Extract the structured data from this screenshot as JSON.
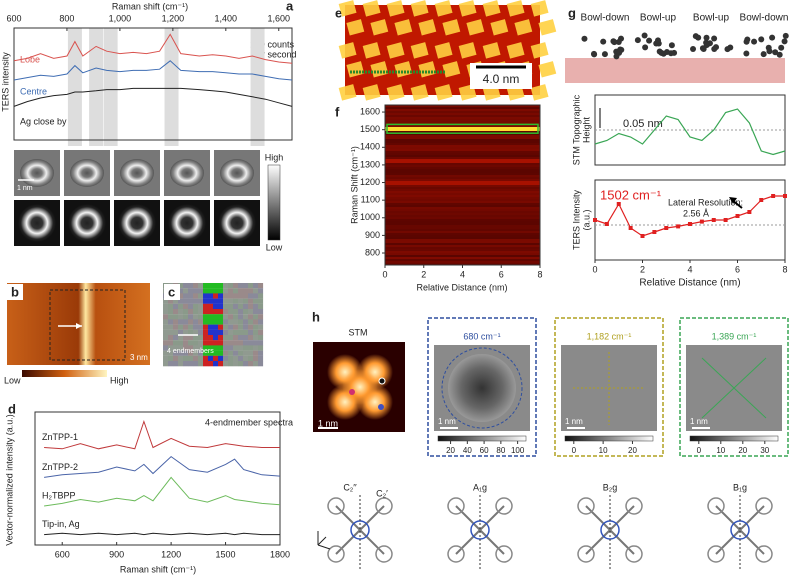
{
  "panels": {
    "a": {
      "label": "a",
      "x_label": "Raman shift (cm⁻¹)",
      "y_label": "TERS intensity",
      "scale_bar": [
        "100 counts",
        "per second"
      ],
      "xlim": [
        600,
        1650
      ],
      "xticks": [
        600,
        800,
        {
          "value": 1000,
          "label": "1,000"
        },
        {
          "value": 1200,
          "label": "1,200"
        },
        {
          "value": 1400,
          "label": "1,400"
        },
        {
          "value": 1600,
          "label": "1,600"
        }
      ],
      "ylim": [
        0,
        100
      ],
      "x": [
        600,
        650,
        700,
        750,
        800,
        830,
        860,
        910,
        950,
        1000,
        1050,
        1100,
        1150,
        1190,
        1230,
        1300,
        1350,
        1400,
        1450,
        1500,
        1550,
        1600,
        1650
      ],
      "series": [
        {
          "name": "Lobe",
          "color": "#d9534f",
          "values": [
            66,
            68,
            72,
            68,
            70,
            82,
            70,
            78,
            74,
            72,
            73,
            72,
            74,
            88,
            72,
            70,
            71,
            70,
            68,
            70,
            67,
            65,
            64
          ]
        },
        {
          "name": "Centre",
          "color": "#3f6db3",
          "values": [
            50,
            52,
            54,
            53,
            55,
            62,
            56,
            60,
            58,
            57,
            58,
            58,
            59,
            66,
            58,
            57,
            57,
            56,
            55,
            55,
            53,
            51,
            50
          ]
        },
        {
          "name": "Ag close by",
          "color": "#222222",
          "values": [
            28,
            32,
            35,
            37,
            38,
            40,
            40,
            41,
            42,
            42,
            43,
            43,
            43,
            43,
            43,
            42,
            41,
            40,
            38,
            36,
            34,
            31,
            28
          ]
        }
      ],
      "image_scale": "1 nm",
      "colorbar": [
        "High",
        "Low"
      ]
    },
    "b": {
      "label": "b",
      "scale_bar": "3 nm",
      "colorbar": [
        "Low",
        "High"
      ]
    },
    "c": {
      "label": "c",
      "note": "4 endmembers"
    },
    "d": {
      "label": "d",
      "title": "4-endmember spectra",
      "x_label": "Raman shift (cm⁻¹)",
      "y_label": "Vector-normalized intensity (a.u.)",
      "xlim": [
        450,
        1800
      ],
      "xticks": [
        600,
        900,
        1200,
        1500,
        1800
      ],
      "ylim": [
        0,
        100
      ],
      "x": [
        500,
        600,
        700,
        800,
        900,
        1000,
        1050,
        1100,
        1200,
        1300,
        1400,
        1500,
        1550,
        1600,
        1700,
        1800
      ],
      "series": [
        {
          "name": "ZnTPP-1",
          "color": "#c0393b",
          "values": [
            75,
            74,
            78,
            74,
            77,
            74,
            95,
            75,
            82,
            76,
            75,
            78,
            77,
            76,
            75,
            75
          ]
        },
        {
          "name": "ZnTPP-2",
          "color": "#4a64a8",
          "values": [
            52,
            54,
            55,
            56,
            60,
            57,
            62,
            55,
            68,
            58,
            56,
            62,
            66,
            58,
            54,
            53
          ]
        },
        {
          "name": "H₂TBPP",
          "color": "#6dbb5c",
          "values": [
            30,
            32,
            35,
            33,
            36,
            34,
            38,
            34,
            52,
            36,
            33,
            38,
            35,
            34,
            32,
            31
          ]
        },
        {
          "name": "Tip-in, Ag",
          "color": "#222222",
          "values": [
            8,
            9,
            8,
            9,
            8,
            9,
            8,
            9,
            8,
            9,
            8,
            9,
            8,
            9,
            8,
            8
          ]
        }
      ]
    },
    "e": {
      "label": "e",
      "scale_bar": "4.0 nm"
    },
    "f": {
      "label": "f",
      "y_label": "Raman Shift (cm⁻¹)",
      "x_label": "Relative Distance (nm)",
      "ylim": [
        732,
        1640
      ],
      "yticks": [
        800,
        900,
        1000,
        1100,
        1200,
        1300,
        1400,
        1500,
        1600
      ],
      "xlim": [
        0,
        8
      ],
      "xticks": [
        0,
        2,
        4,
        6,
        8
      ]
    },
    "g": {
      "label": "g",
      "conformations": [
        "Bowl-down",
        "Bowl-up",
        "Bowl-up",
        "Bowl-down"
      ],
      "x_label": "Relative Distance (nm)",
      "xlim": [
        0,
        8
      ],
      "xticks": [
        0,
        2,
        4,
        6,
        8
      ],
      "x": [
        0,
        0.5,
        1,
        1.5,
        2,
        2.5,
        3,
        3.5,
        4,
        4.5,
        5,
        5.5,
        6,
        6.5,
        7,
        7.5,
        8
      ],
      "height": {
        "y_label": [
          "STM Topographic",
          "Height"
        ],
        "scale_bar": "0.05 nm",
        "ylim": [
          0,
          0.1
        ],
        "color": "#3aa655",
        "values": [
          0.03,
          0.035,
          0.045,
          0.04,
          0.03,
          0.05,
          0.07,
          0.065,
          0.04,
          0.035,
          0.05,
          0.075,
          0.08,
          0.06,
          0.02,
          0.015,
          0.02
        ]
      },
      "ters": {
        "y_label": [
          "TERS Intensity",
          "(a.u.)"
        ],
        "peak": "1502 cm⁻¹",
        "annotation": [
          "Lateral Resolution:",
          "2.56 Å"
        ],
        "ylim": [
          0,
          1
        ],
        "color": "#e02020",
        "values": [
          0.5,
          0.45,
          0.7,
          0.4,
          0.3,
          0.35,
          0.4,
          0.42,
          0.45,
          0.48,
          0.5,
          0.5,
          0.55,
          0.6,
          0.75,
          0.8,
          0.8
        ]
      }
    },
    "h": {
      "label": "h",
      "stm": {
        "title": "STM",
        "scale_bar": "1 nm"
      },
      "maps": [
        {
          "title": "680 cm⁻¹",
          "scale_bar": "1 nm",
          "color": "#2f4f9f",
          "colorbar_lim": [
            5,
            110
          ],
          "colorbar_ticks": [
            20,
            40,
            60,
            80,
            100
          ]
        },
        {
          "title": "1,182 cm⁻¹",
          "scale_bar": "1 nm",
          "color": "#b0a020",
          "colorbar_lim": [
            -3,
            27
          ],
          "colorbar_ticks": [
            0,
            10,
            20
          ]
        },
        {
          "title": "1,389 cm⁻¹",
          "scale_bar": "1 nm",
          "color": "#3aa655",
          "colorbar_lim": [
            -4,
            36
          ],
          "colorbar_ticks": [
            0,
            10,
            20,
            30
          ]
        }
      ],
      "symmetry": [
        "C₂′′",
        "C₂′",
        "A₁g",
        "B₂g",
        "B₁g"
      ]
    }
  }
}
